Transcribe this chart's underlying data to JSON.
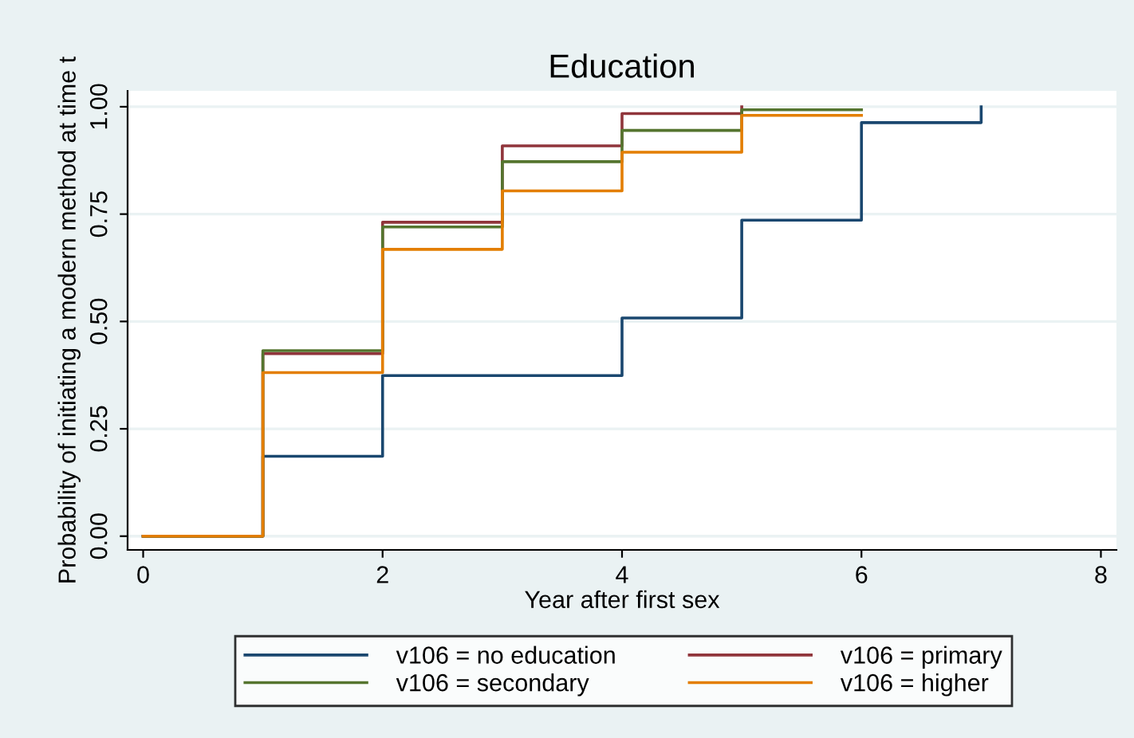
{
  "chart_data": {
    "type": "step",
    "title": "Education",
    "xlabel": "Year after first sex",
    "ylabel": "Probability of initiating a modern method at time t",
    "xlim": [
      -0.13,
      8.13
    ],
    "ylim": [
      -0.032,
      1.037
    ],
    "xticks": [
      0,
      2,
      4,
      6,
      8
    ],
    "yticks": [
      {
        "value": 0,
        "label": "0.00"
      },
      {
        "value": 0.25,
        "label": "0.25"
      },
      {
        "value": 0.5,
        "label": "0.50"
      },
      {
        "value": 0.75,
        "label": "0.75"
      },
      {
        "value": 1,
        "label": "1.00"
      }
    ],
    "grid": "y",
    "legend": "bottom",
    "line_style": "solid",
    "series": [
      {
        "name": "v106 = no education",
        "color": "#1a476f",
        "x": [
          0,
          1,
          2,
          4,
          5,
          6,
          7
        ],
        "values": [
          0,
          0.186,
          0.374,
          0.508,
          0.736,
          0.963,
          1.0
        ]
      },
      {
        "name": "v106 = primary",
        "color": "#90353b",
        "x": [
          0,
          1,
          2,
          3,
          4,
          5
        ],
        "values": [
          0,
          0.425,
          0.731,
          0.909,
          0.984,
          1.0
        ]
      },
      {
        "name": "v106 = secondary",
        "color": "#55752f",
        "x": [
          0,
          1,
          2,
          3,
          4,
          5,
          6
        ],
        "values": [
          0,
          0.432,
          0.72,
          0.872,
          0.945,
          0.993,
          0.993
        ]
      },
      {
        "name": "v106 = higher",
        "color": "#e37e00",
        "x": [
          0,
          1,
          2,
          3,
          4,
          5,
          6
        ],
        "values": [
          0,
          0.381,
          0.668,
          0.804,
          0.894,
          0.98,
          0.98
        ]
      }
    ]
  }
}
